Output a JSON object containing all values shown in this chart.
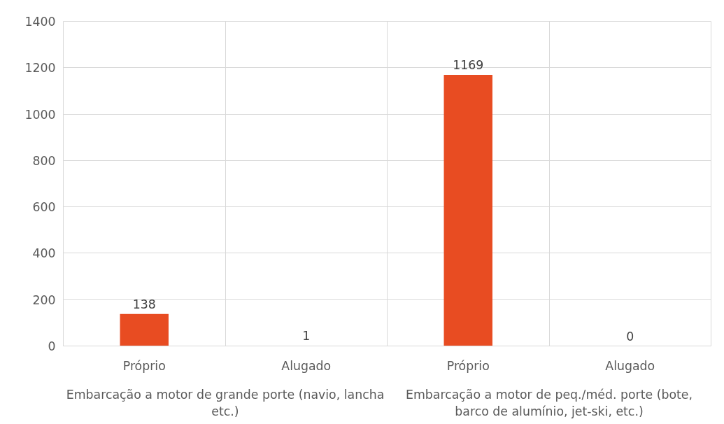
{
  "chart_data": {
    "type": "bar",
    "categories": [
      "Próprio",
      "Alugado",
      "Próprio",
      "Alugado"
    ],
    "values": [
      138,
      1,
      1169,
      0
    ],
    "color": "#e84c22",
    "ylim": [
      0,
      1400
    ],
    "yticks": [
      0,
      200,
      400,
      600,
      800,
      1000,
      1200,
      1400
    ],
    "grid": true,
    "data_labels": true,
    "annotations": [
      "Embarcação a motor de grande porte (navio, lancha etc.)",
      "Embarcação a motor de peq./méd. porte (bote, barco de alumínio, jet-ski, etc.)"
    ]
  }
}
